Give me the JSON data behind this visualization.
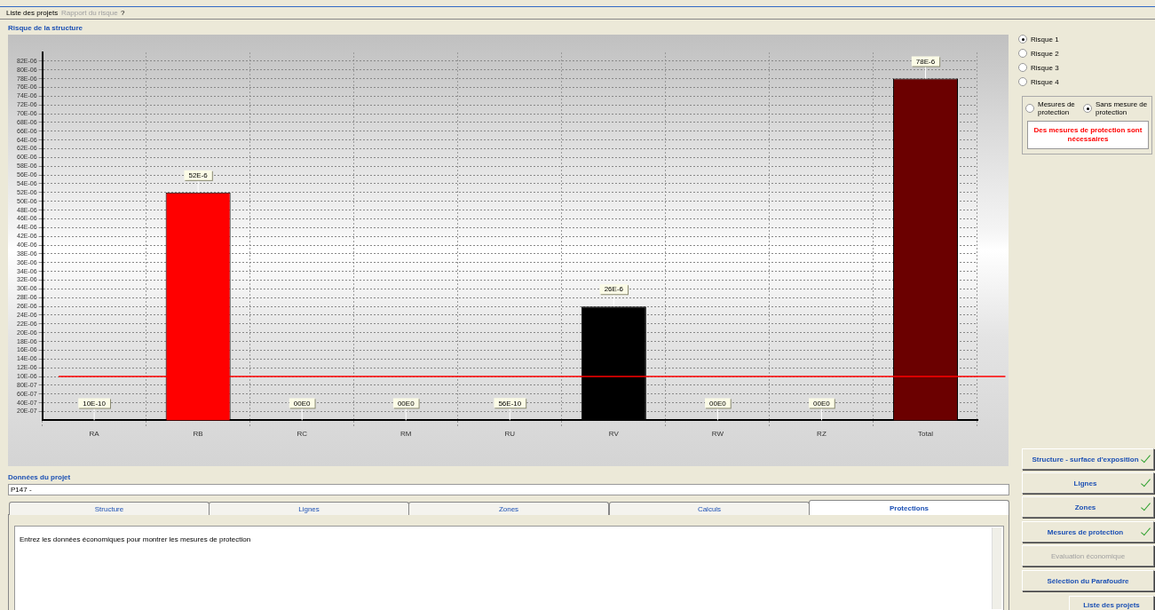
{
  "chart_data": {
    "type": "bar",
    "title": "Risque de la structure",
    "categories": [
      "RA",
      "RB",
      "RC",
      "RM",
      "RU",
      "RV",
      "RW",
      "RZ",
      "Total"
    ],
    "values": [
      1e-09,
      5.2e-05,
      0,
      0,
      5.6e-09,
      2.6e-05,
      0,
      0,
      7.8e-05
    ],
    "colors": [
      "#ff0000",
      "#ff0000",
      "#ff0000",
      "#ff0000",
      "#ff0000",
      "#000000",
      "#ff0000",
      "#ff0000",
      "#6b0000"
    ],
    "value_labels": [
      "10E-10",
      "52E-6",
      "00E0",
      "00E0",
      "56E-10",
      "26E-6",
      "00E0",
      "00E0",
      "78E-6"
    ],
    "ylim": [
      0,
      8.4e-05
    ],
    "yticks": [
      {
        "value": 2e-06,
        "label": "20E-07"
      },
      {
        "value": 4e-06,
        "label": "40E-07"
      },
      {
        "value": 6e-06,
        "label": "60E-07"
      },
      {
        "value": 8e-06,
        "label": "80E-07"
      },
      {
        "value": 1e-05,
        "label": "10E-06"
      },
      {
        "value": 1.2e-05,
        "label": "12E-06"
      },
      {
        "value": 1.4e-05,
        "label": "14E-06"
      },
      {
        "value": 1.6e-05,
        "label": "16E-06"
      },
      {
        "value": 1.8e-05,
        "label": "18E-06"
      },
      {
        "value": 2e-05,
        "label": "20E-06"
      },
      {
        "value": 2.2e-05,
        "label": "22E-06"
      },
      {
        "value": 2.4e-05,
        "label": "24E-06"
      },
      {
        "value": 2.6e-05,
        "label": "26E-06"
      },
      {
        "value": 2.8e-05,
        "label": "28E-06"
      },
      {
        "value": 3e-05,
        "label": "30E-06"
      },
      {
        "value": 3.2e-05,
        "label": "32E-06"
      },
      {
        "value": 3.4e-05,
        "label": "34E-06"
      },
      {
        "value": 3.6e-05,
        "label": "36E-06"
      },
      {
        "value": 3.8e-05,
        "label": "38E-06"
      },
      {
        "value": 4e-05,
        "label": "40E-06"
      },
      {
        "value": 4.2e-05,
        "label": "42E-06"
      },
      {
        "value": 4.4e-05,
        "label": "44E-06"
      },
      {
        "value": 4.6e-05,
        "label": "46E-06"
      },
      {
        "value": 4.8e-05,
        "label": "48E-06"
      },
      {
        "value": 5e-05,
        "label": "50E-06"
      },
      {
        "value": 5.2e-05,
        "label": "52E-06"
      },
      {
        "value": 5.4e-05,
        "label": "54E-06"
      },
      {
        "value": 5.6e-05,
        "label": "56E-06"
      },
      {
        "value": 5.8e-05,
        "label": "58E-06"
      },
      {
        "value": 6e-05,
        "label": "60E-06"
      },
      {
        "value": 6.2e-05,
        "label": "62E-06"
      },
      {
        "value": 6.4e-05,
        "label": "64E-06"
      },
      {
        "value": 6.6e-05,
        "label": "66E-06"
      },
      {
        "value": 6.8e-05,
        "label": "68E-06"
      },
      {
        "value": 7e-05,
        "label": "70E-06"
      },
      {
        "value": 7.2e-05,
        "label": "72E-06"
      },
      {
        "value": 7.4e-05,
        "label": "74E-06"
      },
      {
        "value": 7.6e-05,
        "label": "76E-06"
      },
      {
        "value": 7.8e-05,
        "label": "78E-06"
      },
      {
        "value": 8e-05,
        "label": "80E-06"
      },
      {
        "value": 8.2e-05,
        "label": "82E-06"
      }
    ],
    "grid": true,
    "ref_lines": [
      {
        "axis": "y",
        "value": 1e-05,
        "color": "#ff0000"
      }
    ],
    "annotations": [
      "Liste des projets",
      "Rapport du risque",
      "?",
      "Risque 1",
      "Risque 2",
      "Risque 3",
      "Risque 4",
      "Mesures de protection",
      "Sans mesure de protection",
      "Des mesures de protection sont nécessaires",
      "Structure - surface d'exposition",
      "Lignes",
      "Zones",
      "Mesures de protection",
      "Evaluation économique",
      "Sélection du Parafoudre",
      "Liste des projets",
      "Données du projet",
      "P147 -",
      "Structure",
      "Lignes",
      "Zones",
      "Calculs",
      "Protections",
      "Entrez les données économiques pour montrer les mesures de protection"
    ]
  }
}
